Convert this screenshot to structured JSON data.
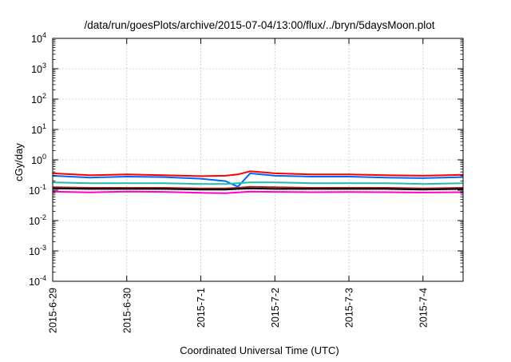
{
  "chart_data": {
    "type": "line",
    "title": "/data/run/goesPlots/archive/2015-07-04/13:00/flux/../bryn/5daysMoon.plot",
    "xlabel": "Coordinated Universal Time (UTC)",
    "ylabel": "cGy/day",
    "y_scale": "log",
    "ylim": [
      0.0001,
      10000
    ],
    "xlim": [
      "2015-06-29 00:00",
      "2015-07-04 13:00"
    ],
    "grid": true,
    "x_ticks": [
      "2015-6-29",
      "2015-6-30",
      "2015-7-1",
      "2015-7-2",
      "2015-7-3",
      "2015-7-4"
    ],
    "y_ticks": [
      {
        "base": "10",
        "exp": "-4"
      },
      {
        "base": "10",
        "exp": "-3"
      },
      {
        "base": "10",
        "exp": "-2"
      },
      {
        "base": "10",
        "exp": "-1"
      },
      {
        "base": "10",
        "exp": "0"
      },
      {
        "base": "10",
        "exp": "1"
      },
      {
        "base": "10",
        "exp": "2"
      },
      {
        "base": "10",
        "exp": "3"
      },
      {
        "base": "10",
        "exp": "4"
      }
    ],
    "x": [
      "2015-06-29 00:00",
      "2015-06-29 12:00",
      "2015-06-30 00:00",
      "2015-06-30 12:00",
      "2015-07-01 00:00",
      "2015-07-01 08:00",
      "2015-07-01 12:00",
      "2015-07-01 16:00",
      "2015-07-02 00:00",
      "2015-07-02 12:00",
      "2015-07-03 00:00",
      "2015-07-03 12:00",
      "2015-07-04 00:00",
      "2015-07-04 13:00"
    ],
    "series": [
      {
        "color": "#ff0000",
        "values": [
          0.36,
          0.31,
          0.33,
          0.31,
          0.29,
          0.3,
          0.33,
          0.42,
          0.36,
          0.33,
          0.33,
          0.31,
          0.3,
          0.32
        ]
      },
      {
        "color": "#0066ff",
        "values": [
          0.3,
          0.26,
          0.28,
          0.27,
          0.24,
          0.2,
          0.13,
          0.36,
          0.3,
          0.28,
          0.28,
          0.26,
          0.25,
          0.27
        ]
      },
      {
        "color": "#22bbaa",
        "values": [
          0.18,
          0.17,
          0.17,
          0.17,
          0.16,
          0.16,
          0.17,
          0.18,
          0.18,
          0.17,
          0.17,
          0.17,
          0.16,
          0.17
        ]
      },
      {
        "color": "#aa2222",
        "values": [
          0.125,
          0.12,
          0.12,
          0.12,
          0.115,
          0.115,
          0.12,
          0.13,
          0.125,
          0.12,
          0.12,
          0.12,
          0.115,
          0.12
        ]
      },
      {
        "color": "#000000",
        "values": [
          0.115,
          0.11,
          0.11,
          0.11,
          0.105,
          0.105,
          0.11,
          0.115,
          0.11,
          0.11,
          0.11,
          0.11,
          0.105,
          0.11
        ]
      },
      {
        "color": "#ff00cc",
        "values": [
          0.09,
          0.085,
          0.09,
          0.088,
          0.082,
          0.08,
          0.085,
          0.09,
          0.088,
          0.086,
          0.087,
          0.086,
          0.084,
          0.086
        ]
      }
    ]
  }
}
